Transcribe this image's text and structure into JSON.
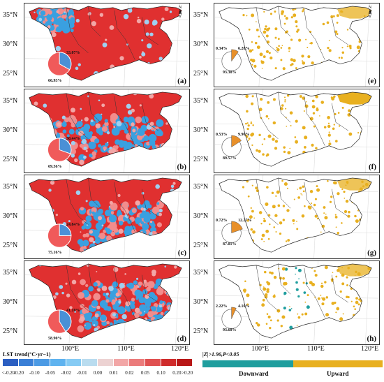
{
  "lat_labels": [
    "35°N",
    "30°N",
    "25°N"
  ],
  "lon_labels": [
    "100°E",
    "110°E",
    "120°E"
  ],
  "north_label": "N",
  "left_panels": [
    {
      "letter": "(a)",
      "pct_a": "33.07%",
      "pct_b": "66.93%"
    },
    {
      "letter": "(b)",
      "pct_a": "30.44%",
      "pct_b": "69.56%"
    },
    {
      "letter": "(c)",
      "pct_a": "24.84%",
      "pct_b": "75.16%"
    },
    {
      "letter": "(d)",
      "pct_a": "41.10%",
      "pct_b": "58.90%"
    }
  ],
  "right_panels": [
    {
      "letter": "(e)",
      "pct_down": "0.34%",
      "pct_up": "6.28%",
      "pct_none": "93.38%"
    },
    {
      "letter": "(f)",
      "pct_down": "0.53%",
      "pct_up": "9.90%",
      "pct_none": "89.57%"
    },
    {
      "letter": "(g)",
      "pct_down": "0.72%",
      "pct_up": "12.27%",
      "pct_none": "87.01%"
    },
    {
      "letter": "(h)",
      "pct_down": "2.22%",
      "pct_up": "4.10%",
      "pct_none": "93.68%"
    }
  ],
  "legend": {
    "title": "LST trend(°C·yr−1)",
    "ticks": [
      "<-0.20",
      "-0.20",
      "-0.10",
      "-0.05",
      "-0.02",
      "-0.01",
      "0.00",
      "0.01",
      "0.02",
      "0.05",
      "0.10",
      "0.20",
      ">0.20"
    ],
    "colors": [
      "#2b5fc2",
      "#3a7fd6",
      "#4c9ae4",
      "#5fb3ef",
      "#86cbf4",
      "#b9dcef",
      "#ecd2d2",
      "#f2a6a6",
      "#eb7b7b",
      "#e05050",
      "#cf2b2b",
      "#b81717"
    ]
  },
  "significance": {
    "title": "|Z|>1.96,P<0.05",
    "down_label": "Downward",
    "up_label": "Upward",
    "down_color": "#1f9e9e",
    "up_color": "#e8b020"
  },
  "map_colors": {
    "warming": "#e03030",
    "cooling": "#3aa0e0",
    "upward": "#e8b020",
    "downward": "#1f9e9e"
  }
}
